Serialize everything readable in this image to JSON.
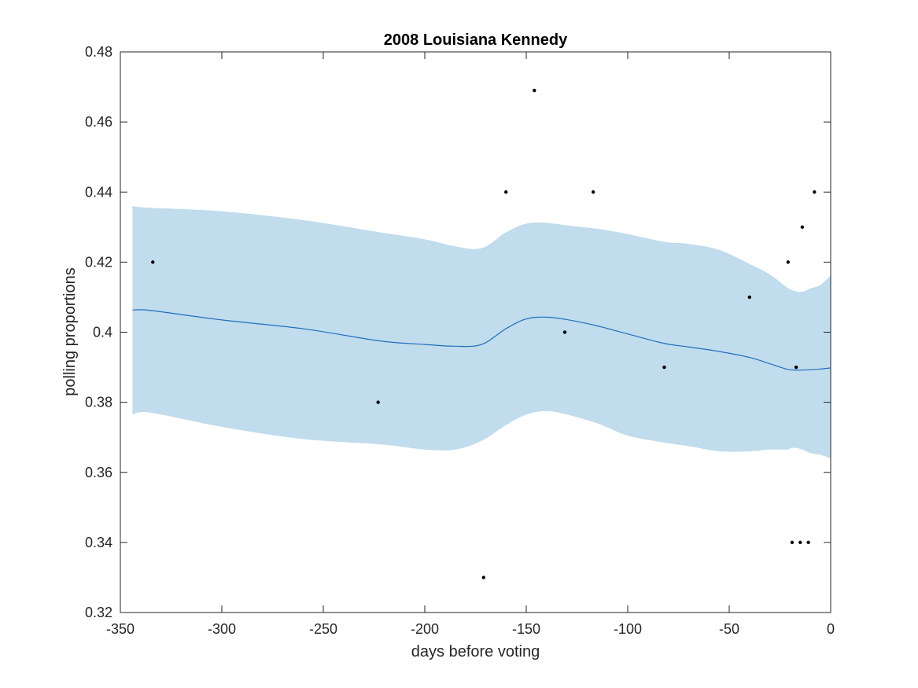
{
  "chart_data": {
    "type": "line",
    "title": "2008 Louisiana Kennedy",
    "xlabel": "days before voting",
    "ylabel": "polling proportions",
    "xlim": [
      -350,
      0
    ],
    "ylim": [
      0.32,
      0.48
    ],
    "xticks": [
      -350,
      -300,
      -250,
      -200,
      -150,
      -100,
      -50,
      0
    ],
    "xtick_labels": [
      "-350",
      "-300",
      "-250",
      "-200",
      "-150",
      "-100",
      "-50",
      "0"
    ],
    "yticks": [
      0.32,
      0.34,
      0.36,
      0.38,
      0.4,
      0.42,
      0.44,
      0.46,
      0.48
    ],
    "ytick_labels": [
      "0.32",
      "0.34",
      "0.36",
      "0.38",
      "0.4",
      "0.42",
      "0.44",
      "0.46",
      "0.48"
    ],
    "grid": false,
    "colors": {
      "band": "#c1dcec",
      "line": "#1f6fbf",
      "points": "#000000"
    },
    "series": [
      {
        "type": "band",
        "x": [
          -344,
          -335,
          -300,
          -260,
          -222,
          -200,
          -185,
          -172,
          -160,
          -150,
          -140,
          -130,
          -115,
          -100,
          -82,
          -70,
          -55,
          -40,
          -30,
          -22,
          -18,
          -14,
          -10,
          -5,
          0
        ],
        "upper": [
          0.436,
          0.4355,
          0.4345,
          0.432,
          0.4285,
          0.4265,
          0.4245,
          0.424,
          0.4285,
          0.431,
          0.4312,
          0.4305,
          0.4295,
          0.428,
          0.4258,
          0.4252,
          0.4235,
          0.4195,
          0.4165,
          0.413,
          0.4118,
          0.4115,
          0.4125,
          0.4135,
          0.4162
        ],
        "lower": [
          0.3765,
          0.377,
          0.373,
          0.3695,
          0.368,
          0.3665,
          0.3665,
          0.369,
          0.3735,
          0.3765,
          0.3775,
          0.3765,
          0.374,
          0.3705,
          0.3685,
          0.3675,
          0.366,
          0.366,
          0.3665,
          0.3665,
          0.367,
          0.3665,
          0.3655,
          0.365,
          0.364
        ]
      },
      {
        "type": "line",
        "x": [
          -344,
          -335,
          -300,
          -260,
          -222,
          -200,
          -185,
          -172,
          -160,
          -150,
          -140,
          -130,
          -115,
          -100,
          -82,
          -70,
          -55,
          -40,
          -30,
          -22,
          -18,
          -14,
          -10,
          -5,
          0
        ],
        "y": [
          0.4063,
          0.4062,
          0.4035,
          0.401,
          0.3975,
          0.3965,
          0.396,
          0.3965,
          0.401,
          0.4038,
          0.4043,
          0.4036,
          0.4018,
          0.3995,
          0.3968,
          0.3958,
          0.3945,
          0.3928,
          0.391,
          0.3895,
          0.3892,
          0.3892,
          0.3893,
          0.3895,
          0.3898
        ]
      },
      {
        "type": "scatter",
        "points": [
          [
            -334,
            0.42
          ],
          [
            -223,
            0.38
          ],
          [
            -171,
            0.33
          ],
          [
            -160,
            0.44
          ],
          [
            -146,
            0.469
          ],
          [
            -131,
            0.4
          ],
          [
            -117,
            0.44
          ],
          [
            -82,
            0.39
          ],
          [
            -40,
            0.41
          ],
          [
            -21,
            0.42
          ],
          [
            -19,
            0.34
          ],
          [
            -17,
            0.39
          ],
          [
            -15,
            0.34
          ],
          [
            -14,
            0.43
          ],
          [
            -11,
            0.34
          ],
          [
            -8,
            0.44
          ]
        ]
      }
    ]
  }
}
